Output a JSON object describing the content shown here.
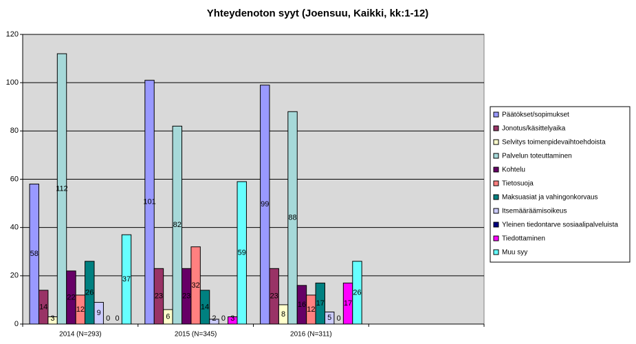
{
  "chart_data": {
    "type": "bar",
    "title": "Yhteydenoton syyt (Joensuu, Kaikki, kk:1-12)",
    "categories": [
      "2014 (N=293)",
      "2015 (N=345)",
      "2016 (N=311)",
      null
    ],
    "series": [
      {
        "name": "Päätökset/sopimukset",
        "color": "#9999ff",
        "values": [
          58,
          101,
          99,
          null
        ]
      },
      {
        "name": "Jonotus/käsittelyaika",
        "color": "#993366",
        "values": [
          14,
          23,
          23,
          null
        ]
      },
      {
        "name": "Selvitys toimenpidevaihtoehdoista",
        "color": "#ffffcc",
        "values": [
          3,
          6,
          8,
          null
        ]
      },
      {
        "name": "Palvelun toteuttaminen",
        "color": "#a6d9d9",
        "values": [
          112,
          82,
          88,
          null
        ]
      },
      {
        "name": "Kohtelu",
        "color": "#660066",
        "values": [
          22,
          23,
          16,
          null
        ]
      },
      {
        "name": "Tietosuoja",
        "color": "#ff8080",
        "values": [
          12,
          32,
          12,
          null
        ]
      },
      {
        "name": "Maksuasiat ja vahingonkorvaus",
        "color": "#008080",
        "values": [
          26,
          14,
          17,
          null
        ]
      },
      {
        "name": "Itsemääräämisoikeus",
        "color": "#ccccff",
        "values": [
          9,
          2,
          5,
          null
        ]
      },
      {
        "name": "Yleinen tiedontarve sosiaalipalveluista",
        "color": "#000080",
        "values": [
          0,
          0,
          0,
          null
        ]
      },
      {
        "name": "Tiedottaminen",
        "color": "#ff00ff",
        "values": [
          0,
          3,
          17,
          null
        ]
      },
      {
        "name": "Muu syy",
        "color": "#66ffff",
        "values": [
          37,
          59,
          26,
          null
        ]
      }
    ],
    "ylim": [
      0,
      120
    ],
    "yticks": [
      0,
      20,
      40,
      60,
      80,
      100,
      120
    ],
    "grid": true,
    "legend": "right"
  }
}
